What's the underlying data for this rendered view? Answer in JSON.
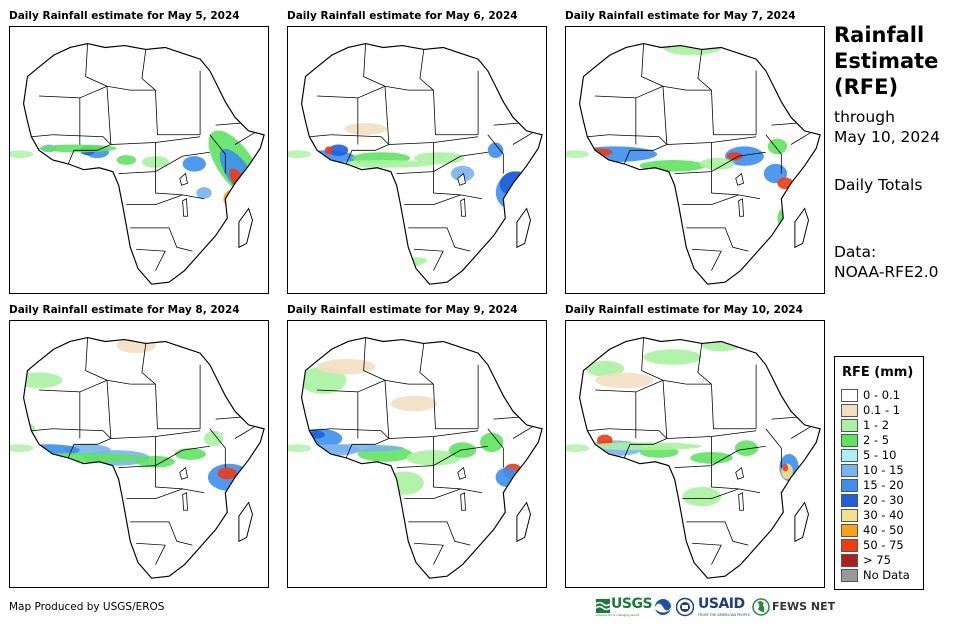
{
  "panels": [
    {
      "title": "Daily Rainfall estimate for May 5, 2024"
    },
    {
      "title": "Daily Rainfall estimate for May 6, 2024"
    },
    {
      "title": "Daily Rainfall estimate for May 7, 2024"
    },
    {
      "title": "Daily Rainfall estimate for May 8, 2024"
    },
    {
      "title": "Daily Rainfall estimate for May 9, 2024"
    },
    {
      "title": "Daily Rainfall estimate for May 10, 2024"
    }
  ],
  "side": {
    "title_lines": [
      "Rainfall",
      "Estimate",
      "(RFE)"
    ],
    "through_label": "through",
    "through_date": "May 10, 2024",
    "totals_label": "Daily Totals",
    "data_label": "Data:",
    "data_source": "NOAA-RFE2.0"
  },
  "legend": {
    "title": "RFE (mm)",
    "items": [
      {
        "label": "0 - 0.1",
        "color": "#ffffff"
      },
      {
        "label": "0.1 - 1",
        "color": "#f2dfc2"
      },
      {
        "label": "1 - 2",
        "color": "#a8f2a0"
      },
      {
        "label": "2 - 5",
        "color": "#5fe35f"
      },
      {
        "label": "5 - 10",
        "color": "#a8f0f5"
      },
      {
        "label": "10 - 15",
        "color": "#78b4f0"
      },
      {
        "label": "15 - 20",
        "color": "#3b8ff0"
      },
      {
        "label": "20 - 30",
        "color": "#1f5fdc"
      },
      {
        "label": "30 - 40",
        "color": "#f7e08c"
      },
      {
        "label": "40 - 50",
        "color": "#f7a21a"
      },
      {
        "label": "50 - 75",
        "color": "#f23a0f"
      },
      {
        "label": "> 75",
        "color": "#aa1f1f"
      },
      {
        "label": "No Data",
        "color": "#999999"
      }
    ]
  },
  "footer": {
    "credit": "Map Produced by USGS/EROS",
    "logos": {
      "usgs": "USGS",
      "usgs_tagline": "science for a changing world",
      "usaid": "USAID",
      "usaid_tagline": "FROM THE AMERICAN PEOPLE",
      "fewsnet": "FEWS NET"
    }
  }
}
